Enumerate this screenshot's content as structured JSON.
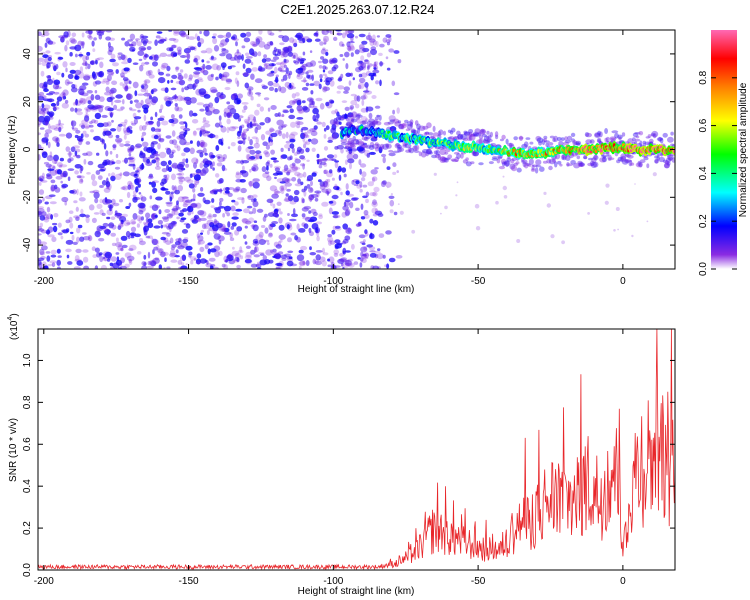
{
  "title": "C2E1.2025.263.07.12.R24",
  "chart_data": [
    {
      "type": "heatmap",
      "name": "spectrogram",
      "xlabel": "Height of straight line (km)",
      "ylabel": "Frequency (Hz)",
      "xlim": [
        -202,
        18
      ],
      "ylim": [
        -50,
        50
      ],
      "xticks": [
        -200,
        -150,
        -100,
        -50,
        0
      ],
      "yticks": [
        -40,
        -20,
        0,
        20,
        40
      ],
      "colorbar": {
        "label": "Normalized spectral amplitude",
        "range": [
          0,
          1
        ],
        "ticks": [
          {
            "v": 0.0,
            "label": "0.0"
          },
          {
            "v": 0.2,
            "label": "0.2"
          },
          {
            "v": 0.4,
            "label": "0.4"
          },
          {
            "v": 0.6,
            "label": "0.6"
          },
          {
            "v": 0.8,
            "label": "0.8"
          }
        ]
      },
      "noise_region_x": [
        -202,
        -85
      ],
      "signal_track": [
        {
          "x": -97,
          "y": 7,
          "amp": 0.35
        },
        {
          "x": -92,
          "y": 8,
          "amp": 0.3
        },
        {
          "x": -88,
          "y": 8,
          "amp": 0.35
        },
        {
          "x": -85,
          "y": 7,
          "amp": 0.4
        },
        {
          "x": -80,
          "y": 6,
          "amp": 0.45
        },
        {
          "x": -75,
          "y": 5,
          "amp": 0.4
        },
        {
          "x": -70,
          "y": 4,
          "amp": 0.45
        },
        {
          "x": -65,
          "y": 3,
          "amp": 0.45
        },
        {
          "x": -60,
          "y": 2,
          "amp": 0.5
        },
        {
          "x": -55,
          "y": 1,
          "amp": 0.5
        },
        {
          "x": -50,
          "y": 1,
          "amp": 0.55
        },
        {
          "x": -45,
          "y": 0,
          "amp": 0.6
        },
        {
          "x": -40,
          "y": -1,
          "amp": 0.65
        },
        {
          "x": -35,
          "y": -2,
          "amp": 0.7
        },
        {
          "x": -30,
          "y": -2,
          "amp": 0.65
        },
        {
          "x": -25,
          "y": -1,
          "amp": 0.7
        },
        {
          "x": -20,
          "y": 0,
          "amp": 0.8
        },
        {
          "x": -15,
          "y": 0,
          "amp": 0.85
        },
        {
          "x": -10,
          "y": 0,
          "amp": 0.9
        },
        {
          "x": -5,
          "y": 1,
          "amp": 0.8
        },
        {
          "x": 0,
          "y": 1,
          "amp": 0.9
        },
        {
          "x": 5,
          "y": 0,
          "amp": 0.95
        },
        {
          "x": 10,
          "y": 0,
          "amp": 0.95
        },
        {
          "x": 15,
          "y": 0,
          "amp": 0.9
        },
        {
          "x": 18,
          "y": 0,
          "amp": 0.9
        }
      ]
    },
    {
      "type": "line",
      "name": "snr",
      "xlabel": "Height of straight line (km)",
      "ylabel": "SNR (10 * v/v)",
      "yscale_label": "(x10",
      "yscale_exp": "4",
      "xlim": [
        -202,
        18
      ],
      "ylim": [
        0,
        1.15
      ],
      "xticks": [
        -200,
        -150,
        -100,
        -50,
        0
      ],
      "yticks": [
        {
          "v": 0.0,
          "label": "0.0"
        },
        {
          "v": 0.2,
          "label": "0.2"
        },
        {
          "v": 0.4,
          "label": "0.4"
        },
        {
          "v": 0.6,
          "label": "0.6"
        },
        {
          "v": 0.8,
          "label": "0.8"
        },
        {
          "v": 1.0,
          "label": "1.0"
        }
      ],
      "color": "#e8262a",
      "envelope": {
        "x": [
          -202,
          -100,
          -85,
          -78,
          -72,
          -68,
          -65,
          -62,
          -58,
          -55,
          -52,
          -50,
          -48,
          -45,
          -42,
          -40,
          -38,
          -35,
          -32,
          -30,
          -28,
          -25,
          -22,
          -20,
          -18,
          -15,
          -12,
          -10,
          -8,
          -5,
          -3,
          -1,
          0,
          3,
          6,
          10,
          14,
          18
        ],
        "y": [
          0.01,
          0.01,
          0.02,
          0.05,
          0.12,
          0.22,
          0.3,
          0.27,
          0.23,
          0.2,
          0.18,
          0.16,
          0.15,
          0.15,
          0.14,
          0.2,
          0.28,
          0.35,
          0.32,
          0.42,
          0.45,
          0.5,
          0.55,
          0.52,
          0.48,
          0.58,
          0.62,
          0.55,
          0.52,
          0.68,
          0.75,
          0.5,
          0.12,
          0.6,
          0.78,
          0.82,
          0.86,
          0.8
        ]
      }
    }
  ]
}
